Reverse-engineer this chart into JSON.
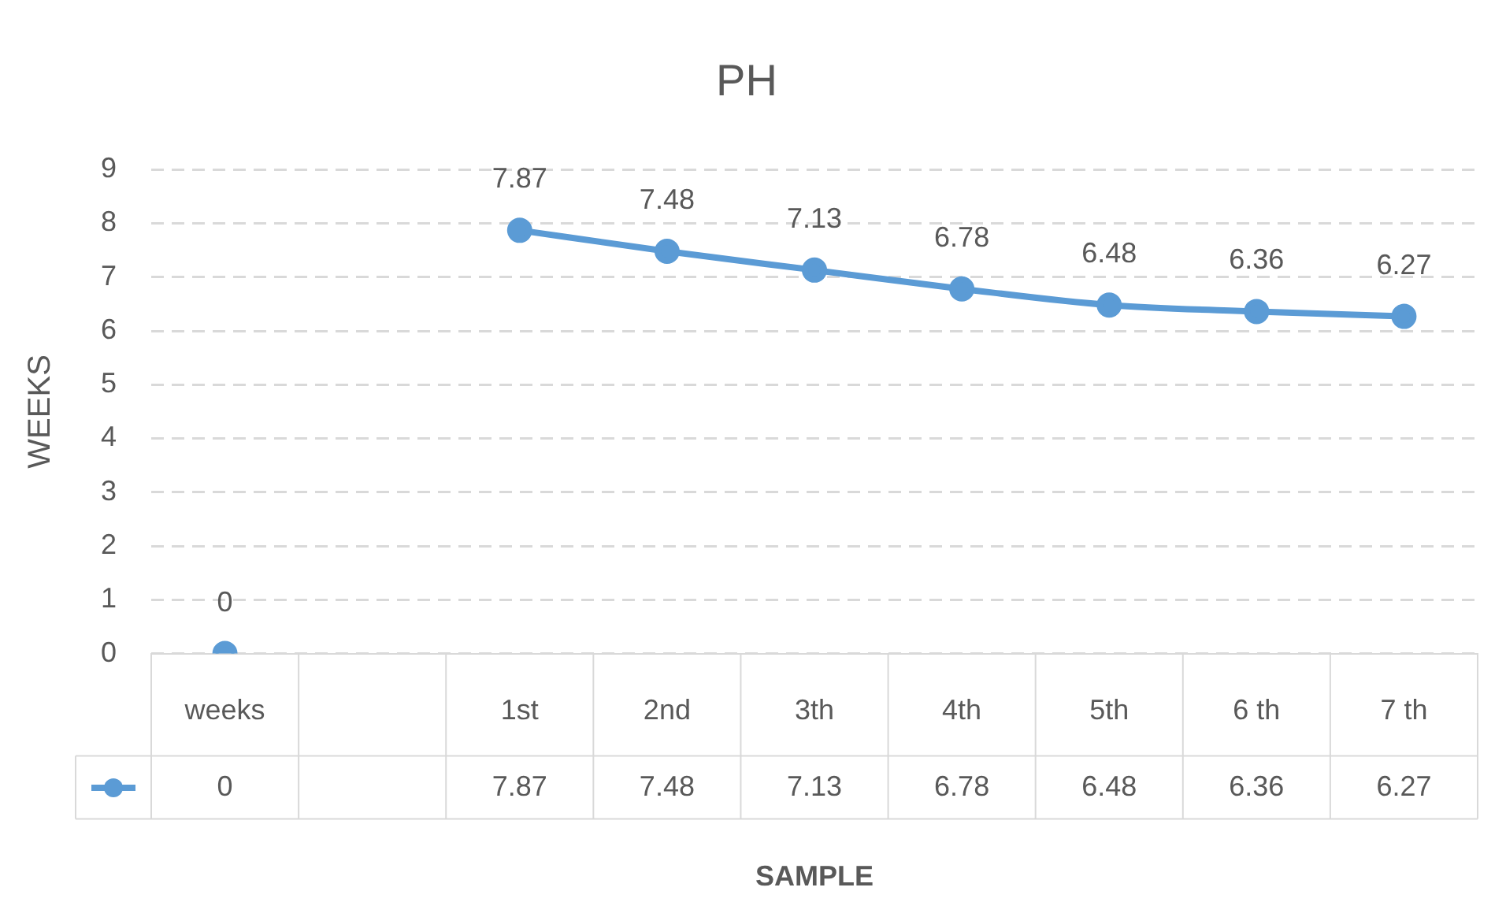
{
  "chart_data": {
    "type": "line",
    "title": "PH",
    "xlabel": "SAMPLE",
    "ylabel": "WEEKS",
    "categories": [
      "weeks",
      null,
      "1st",
      "2nd",
      "3th",
      "4th",
      "5th",
      "6 th",
      "7 th"
    ],
    "series": [
      {
        "color": "#5b9bd5",
        "values": [
          0,
          null,
          7.87,
          7.48,
          7.13,
          6.78,
          6.48,
          6.36,
          6.27
        ],
        "value_labels": [
          "0",
          null,
          "7.87",
          "7.48",
          "7.13",
          "6.78",
          "6.48",
          "6.36",
          "6.27"
        ]
      }
    ],
    "ylim": [
      0,
      9
    ],
    "yticks": [
      0,
      1,
      2,
      3,
      4,
      5,
      6,
      7,
      8,
      9
    ],
    "annotations": [
      "0",
      "7.87",
      "7.48",
      "7.13",
      "6.78",
      "6.48",
      "6.36",
      "6.27"
    ],
    "grid": "y",
    "line_style": "solid",
    "marker": "circle",
    "data_labels": true,
    "legend": false
  }
}
